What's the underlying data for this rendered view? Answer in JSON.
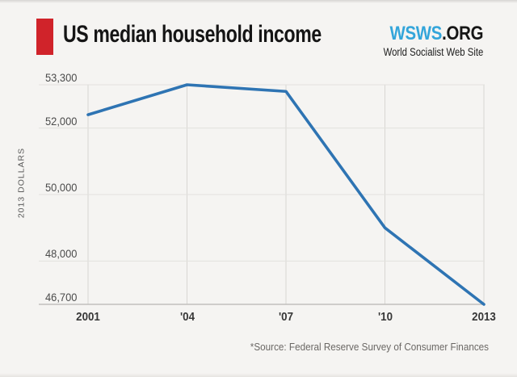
{
  "header": {
    "title": "US median household income",
    "logo": {
      "name": "WSWS",
      "suffix": ".ORG",
      "tagline": "World Socialist Web Site"
    }
  },
  "chart_data": {
    "type": "line",
    "title": "US median household income",
    "ylabel": "2013 DOLLARS",
    "xlabel": "",
    "categories": [
      "2001",
      "'04",
      "'07",
      "'10",
      "2013"
    ],
    "x_years": [
      2001,
      2004,
      2007,
      2010,
      2013
    ],
    "series": [
      {
        "name": "US median household income (2013 dollars)",
        "values": [
          52400,
          53300,
          53100,
          49000,
          46700
        ]
      }
    ],
    "ylim": [
      46700,
      53300
    ],
    "yticks": [
      {
        "value": 53300,
        "label": "53,300"
      },
      {
        "value": 52000,
        "label": "52,000"
      },
      {
        "value": 50000,
        "label": "50,000"
      },
      {
        "value": 48000,
        "label": "48,000"
      },
      {
        "value": 46700,
        "label": "46,700"
      }
    ],
    "grid": true,
    "legend": false
  },
  "footer": {
    "source_note": "*Source: Federal Reserve Survey of Consumer Finances"
  },
  "colors": {
    "background": "#f5f4f2",
    "accent_red": "#d0232a",
    "logo_blue": "#33a5da",
    "line_blue": "#2e74b3",
    "grid_horizontal": "#e2e1de",
    "grid_vertical": "#d8d6d3",
    "axis": "#c2bfbc",
    "tick_text": "#4b4b4b",
    "source_text": "#6b6865"
  }
}
